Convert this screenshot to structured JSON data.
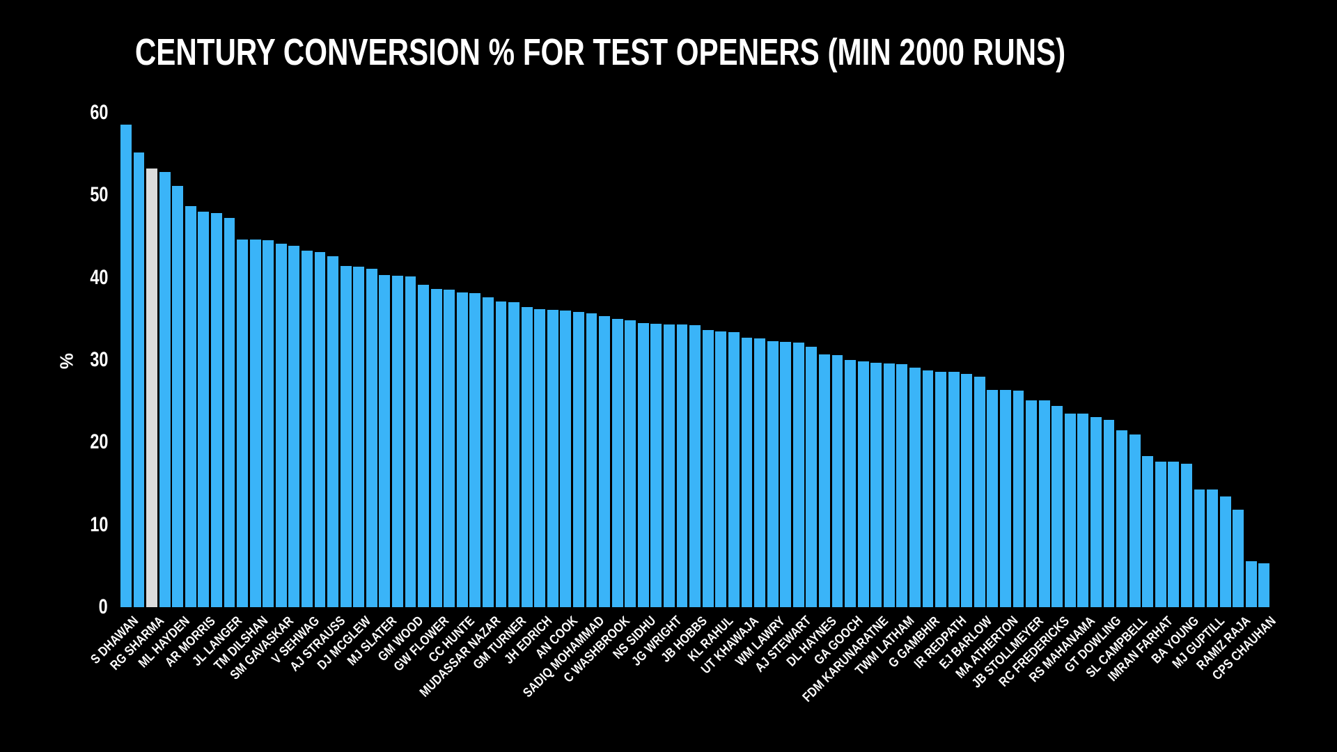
{
  "title": "CENTURY CONVERSION % FOR TEST OPENERS (MIN 2000 RUNS)",
  "chart_data": {
    "type": "bar",
    "title": "CENTURY CONVERSION % FOR TEST OPENERS (MIN 2000 RUNS)",
    "xlabel": "",
    "ylabel": "%",
    "ylim": [
      0,
      60
    ],
    "yticks": [
      "0",
      "10",
      "20",
      "30",
      "40",
      "50",
      "60"
    ],
    "grid": false,
    "legend": null,
    "background_color": "#000000",
    "text_color": "#ffffff",
    "bar_color": "#3ab4f8",
    "highlight_color": "#dcdcdc",
    "highlight_bar_index": 2,
    "highlight_label": "RG SHARMA",
    "label_every_nth_bar": 2,
    "values": [
      58.6,
      55.2,
      53.2,
      52.8,
      51.1,
      48.7,
      48.0,
      47.8,
      47.2,
      44.6,
      44.6,
      44.5,
      44.1,
      43.9,
      43.3,
      43.1,
      42.6,
      41.4,
      41.3,
      41.1,
      40.3,
      40.2,
      40.1,
      39.1,
      38.6,
      38.5,
      38.2,
      38.1,
      37.6,
      37.1,
      37.0,
      36.4,
      36.2,
      36.1,
      36.0,
      35.8,
      35.7,
      35.3,
      35.0,
      34.8,
      34.5,
      34.4,
      34.3,
      34.3,
      34.2,
      33.6,
      33.5,
      33.4,
      32.7,
      32.6,
      32.3,
      32.2,
      32.1,
      31.6,
      30.7,
      30.6,
      30.0,
      29.8,
      29.7,
      29.6,
      29.5,
      29.1,
      28.7,
      28.6,
      28.6,
      28.3,
      28.0,
      26.4,
      26.4,
      26.3,
      25.1,
      25.1,
      24.4,
      23.5,
      23.5,
      23.1,
      22.7,
      21.5,
      21.0,
      18.3,
      17.7,
      17.7,
      17.4,
      14.3,
      14.3,
      13.4,
      11.8,
      5.6,
      5.3
    ],
    "categories": [
      "S DHAWAN",
      "RG SHARMA",
      "ML HAYDEN",
      "AR MORRIS",
      "JL LANGER",
      "TM DILSHAN",
      "SM GAVASKAR",
      "V SEHWAG",
      "AJ STRAUSS",
      "DJ MCGLEW",
      "MJ SLATER",
      "GM WOOD",
      "GW FLOWER",
      "CC HUNTE",
      "MUDASSAR NAZAR",
      "GM TURNER",
      "JH EDRICH",
      "AN COOK",
      "SADIQ MOHAMMAD",
      "C WASHBROOK",
      "NS SIDHU",
      "JG WRIGHT",
      "JB HOBBS",
      "KL RAHUL",
      "UT KHAWAJA",
      "WM LAWRY",
      "AJ STEWART",
      "DL HAYNES",
      "GA GOOCH",
      "FDM KARUNARATNE",
      "TWM LATHAM",
      "G GAMBHIR",
      "IR REDPATH",
      "EJ BARLOW",
      "MA ATHERTON",
      "JB STOLLMEYER",
      "RC FREDERICKS",
      "RS MAHANAMA",
      "GT DOWLING",
      "SL CAMPBELL",
      "IMRAN FARHAT",
      "BA YOUNG",
      "MJ GUPTILL",
      "RAMIZ RAJA",
      "CPS CHAUHAN"
    ]
  }
}
